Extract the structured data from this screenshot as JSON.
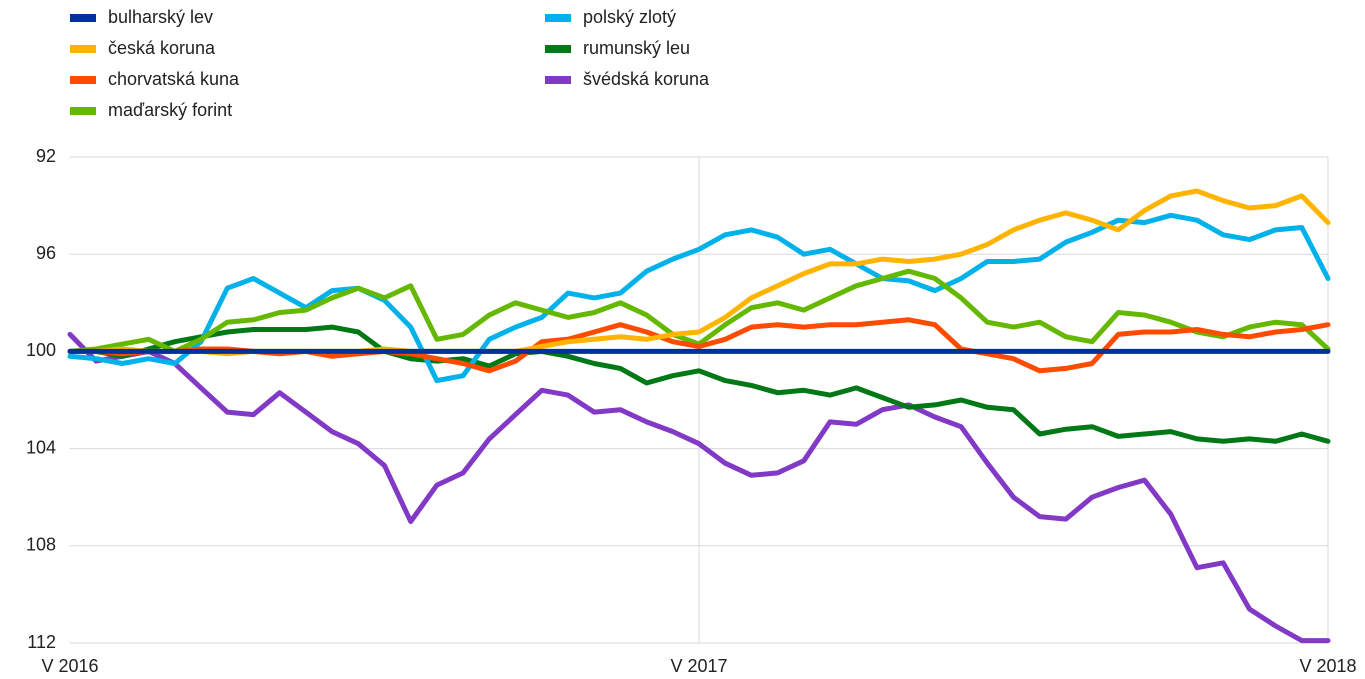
{
  "chart_data": {
    "type": "line",
    "categories": [
      "V 2016",
      null,
      null,
      null,
      null,
      null,
      null,
      null,
      null,
      null,
      null,
      null,
      null,
      null,
      null,
      null,
      null,
      null,
      null,
      null,
      null,
      null,
      null,
      null,
      "V 2017",
      null,
      null,
      null,
      null,
      null,
      null,
      null,
      null,
      null,
      null,
      null,
      null,
      null,
      null,
      null,
      null,
      null,
      null,
      null,
      null,
      null,
      null,
      null,
      "V 2018"
    ],
    "ylim": [
      92,
      112
    ],
    "y_inverted": true,
    "yticks": [
      92,
      96,
      100,
      104,
      108,
      112
    ],
    "grid": true,
    "legend": "top",
    "series": [
      {
        "name": "bulharský lev",
        "color": "#003299",
        "values": [
          100,
          100,
          100,
          100,
          100,
          100,
          100,
          100,
          100,
          100,
          100,
          100,
          100,
          100,
          100,
          100,
          100,
          100,
          100,
          100,
          100,
          100,
          100,
          100,
          100,
          100,
          100,
          100,
          100,
          100,
          100,
          100,
          100,
          100,
          100,
          100,
          100,
          100,
          100,
          100,
          100,
          100,
          100,
          100,
          100,
          100,
          100,
          100,
          100
        ]
      },
      {
        "name": "česká koruna",
        "color": "#ffb400",
        "values": [
          100,
          100,
          99.9,
          100,
          100,
          100,
          100.1,
          100,
          100,
          100,
          100,
          100,
          99.9,
          100,
          100,
          100,
          100,
          100,
          99.8,
          99.6,
          99.5,
          99.4,
          99.5,
          99.3,
          99.2,
          98.6,
          97.8,
          97.3,
          96.8,
          96.4,
          96.4,
          96.2,
          96.3,
          96.2,
          96.0,
          95.6,
          95.0,
          94.6,
          94.3,
          94.6,
          95.0,
          94.2,
          93.6,
          93.4,
          93.8,
          94.1,
          94.0,
          93.6,
          94.7
        ]
      },
      {
        "name": "chorvatská kuna",
        "color": "#ff4b00",
        "values": [
          100,
          100,
          100.1,
          100,
          100,
          99.9,
          99.9,
          100,
          100.1,
          100,
          100.2,
          100.1,
          100,
          100.1,
          100.3,
          100.5,
          100.8,
          100.4,
          99.6,
          99.5,
          99.2,
          98.9,
          99.2,
          99.6,
          99.8,
          99.5,
          99.0,
          98.9,
          99.0,
          98.9,
          98.9,
          98.8,
          98.7,
          98.9,
          99.9,
          100.1,
          100.3,
          100.8,
          100.7,
          100.5,
          99.3,
          99.2,
          99.2,
          99.1,
          99.3,
          99.4,
          99.2,
          99.1,
          98.9
        ]
      },
      {
        "name": "maďarský forint",
        "color": "#65b800",
        "values": [
          100,
          99.9,
          99.7,
          99.5,
          100,
          99.5,
          98.8,
          98.7,
          98.4,
          98.3,
          97.8,
          97.4,
          97.8,
          97.3,
          99.5,
          99.3,
          98.5,
          98.0,
          98.3,
          98.6,
          98.4,
          98.0,
          98.5,
          99.3,
          99.7,
          98.9,
          98.2,
          98.0,
          98.3,
          97.8,
          97.3,
          97.0,
          96.7,
          97.0,
          97.8,
          98.8,
          99.0,
          98.8,
          99.4,
          99.6,
          98.4,
          98.5,
          98.8,
          99.2,
          99.4,
          99.0,
          98.8,
          98.9,
          99.9
        ]
      },
      {
        "name": "polský zlotý",
        "color": "#00b1ea",
        "values": [
          100.2,
          100.3,
          100.5,
          100.3,
          100.5,
          99.6,
          97.4,
          97.0,
          97.6,
          98.2,
          97.5,
          97.4,
          97.9,
          99.0,
          101.2,
          101.0,
          99.5,
          99.0,
          98.6,
          97.6,
          97.8,
          97.6,
          96.7,
          96.2,
          95.8,
          95.2,
          95.0,
          95.3,
          96.0,
          95.8,
          96.4,
          97.0,
          97.1,
          97.5,
          97.0,
          96.3,
          96.3,
          96.2,
          95.5,
          95.1,
          94.6,
          94.7,
          94.4,
          94.6,
          95.2,
          95.4,
          95.0,
          94.9,
          97.0
        ]
      },
      {
        "name": "rumunský leu",
        "color": "#007816",
        "values": [
          100,
          100,
          100.2,
          99.9,
          99.6,
          99.4,
          99.2,
          99.1,
          99.1,
          99.1,
          99.0,
          99.2,
          100,
          100.3,
          100.4,
          100.3,
          100.6,
          100.1,
          100,
          100.2,
          100.5,
          100.7,
          101.3,
          101.0,
          100.8,
          101.2,
          101.4,
          101.7,
          101.6,
          101.8,
          101.5,
          101.9,
          102.3,
          102.2,
          102.0,
          102.3,
          102.4,
          103.4,
          103.2,
          103.1,
          103.5,
          103.4,
          103.3,
          103.6,
          103.7,
          103.6,
          103.7,
          103.4,
          103.7
        ]
      },
      {
        "name": "švédská koruna",
        "color": "#8139c6",
        "values": [
          99.3,
          100.4,
          100.2,
          100.0,
          100.5,
          101.5,
          102.5,
          102.6,
          101.7,
          102.5,
          103.3,
          103.8,
          104.7,
          107.0,
          105.5,
          105.0,
          103.6,
          102.6,
          101.6,
          101.8,
          102.5,
          102.4,
          102.9,
          103.3,
          103.8,
          104.6,
          105.1,
          105.0,
          104.5,
          102.9,
          103.0,
          102.4,
          102.2,
          102.7,
          103.1,
          104.6,
          106.0,
          106.8,
          106.9,
          106.0,
          105.6,
          105.3,
          106.7,
          108.9,
          108.7,
          110.6,
          111.3,
          111.9,
          111.9
        ]
      }
    ]
  }
}
